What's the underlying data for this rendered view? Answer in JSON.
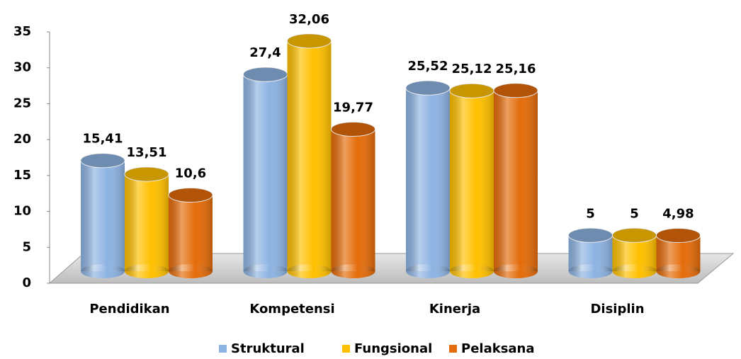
{
  "chart_data": {
    "type": "bar3d",
    "categories": [
      "Pendidikan",
      "Kompetensi",
      "Kinerja",
      "Disiplin"
    ],
    "series": [
      {
        "name": "Struktural",
        "color": "#8db3e2",
        "values": [
          15.41,
          27.4,
          25.52,
          5
        ],
        "value_labels": [
          "15,41",
          "27,4",
          "25,52",
          "5"
        ]
      },
      {
        "name": "Fungsional",
        "color": "#ffc000",
        "values": [
          13.51,
          32.06,
          25.12,
          5
        ],
        "value_labels": [
          "13,51",
          "32,06",
          "25,12",
          "5"
        ]
      },
      {
        "name": "Pelaksana",
        "color": "#e46c0a",
        "values": [
          10.6,
          19.77,
          25.16,
          4.98
        ],
        "value_labels": [
          "10,6",
          "19,77",
          "25,16",
          "4,98"
        ]
      }
    ],
    "ylim": [
      0,
      35
    ],
    "yticks": [
      0,
      5,
      10,
      15,
      20,
      25,
      30,
      35
    ],
    "legend": "bottom"
  }
}
